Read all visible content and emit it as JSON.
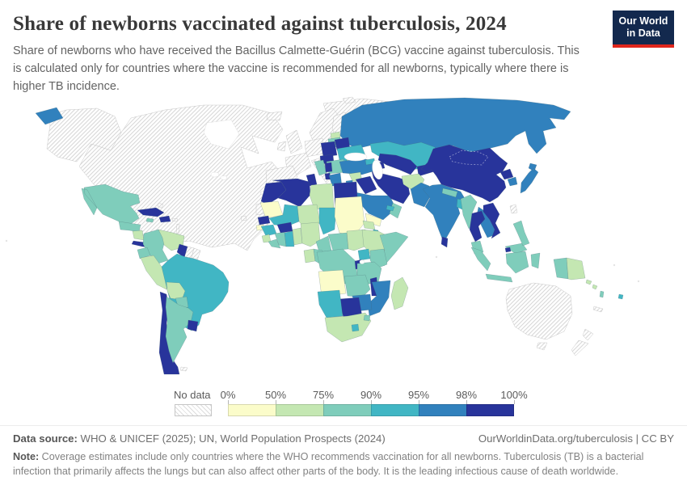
{
  "header": {
    "title": "Share of newborns vaccinated against tuberculosis, 2024",
    "subtitle": "Share of newborns who have received the Bacillus Calmette-Guérin (BCG) vaccine against tuberculosis. This is calculated only for countries where the vaccine is recommended for all newborns, typically where there is higher TB incidence.",
    "logo_line1": "Our World",
    "logo_line2": "in Data",
    "logo_colors": {
      "background": "#13294e",
      "stripe": "#e0261c"
    }
  },
  "chart_data": {
    "type": "heatmap",
    "title": "Share of newborns vaccinated against tuberculosis, 2024",
    "legend_position": "bottom",
    "no_data_label": "No data",
    "tick_labels": [
      "0%",
      "50%",
      "75%",
      "90%",
      "95%",
      "98%",
      "100%"
    ],
    "bucket_ranges": [
      "0-50%",
      "50-75%",
      "75-90%",
      "90-95%",
      "95-98%",
      "98-100%"
    ],
    "bucket_colors": [
      "#fbfcca",
      "#c4e7b2",
      "#7fcdbb",
      "#41b6c4",
      "#3181bd",
      "#28349b"
    ]
  },
  "map": {
    "regions": [
      {
        "id": "canada-usa",
        "name": "Canada & United States",
        "bucket": "no-data"
      },
      {
        "id": "alaska",
        "name": "United States (Alaska)",
        "bucket": "no-data"
      },
      {
        "id": "greenland",
        "name": "Greenland",
        "bucket": "no-data"
      },
      {
        "id": "svalbard",
        "name": "Svalbard",
        "bucket": "no-data"
      },
      {
        "id": "iceland",
        "name": "Iceland",
        "bucket": "no-data"
      },
      {
        "id": "hawaii",
        "name": "Hawaii",
        "bucket": "no-data"
      },
      {
        "id": "uk",
        "name": "United Kingdom",
        "bucket": "no-data"
      },
      {
        "id": "ireland",
        "name": "Ireland",
        "bucket": "no-data"
      },
      {
        "id": "scandinavia",
        "name": "Norway & Sweden",
        "bucket": "no-data"
      },
      {
        "id": "finland",
        "name": "Finland",
        "bucket": "no-data"
      },
      {
        "id": "germany-central",
        "name": "Central Europe",
        "bucket": "no-data"
      },
      {
        "id": "france",
        "name": "France",
        "bucket": "no-data"
      },
      {
        "id": "iberia",
        "name": "Spain & Portugal",
        "bucket": "no-data"
      },
      {
        "id": "italy",
        "name": "Italy",
        "bucket": "no-data"
      },
      {
        "id": "western-sahara",
        "name": "Western Sahara",
        "bucket": "no-data"
      },
      {
        "id": "suriname",
        "name": "Suriname",
        "bucket": "no-data"
      },
      {
        "id": "french-guiana",
        "name": "French Guiana",
        "bucket": "no-data"
      },
      {
        "id": "bahamas",
        "name": "Bahamas",
        "bucket": "no-data"
      },
      {
        "id": "puerto-rico",
        "name": "Puerto Rico",
        "bucket": "no-data"
      },
      {
        "id": "lesser-antilles",
        "name": "Lesser Antilles",
        "bucket": "no-data"
      },
      {
        "id": "falkland-islands",
        "name": "Falkland Islands",
        "bucket": "no-data"
      },
      {
        "id": "taiwan",
        "name": "Taiwan",
        "bucket": "no-data"
      },
      {
        "id": "australia",
        "name": "Australia",
        "bucket": "no-data"
      },
      {
        "id": "tasmania",
        "name": "Tasmania",
        "bucket": "no-data"
      },
      {
        "id": "new-zealand",
        "name": "New Zealand",
        "bucket": "no-data"
      },
      {
        "id": "new-caledonia",
        "name": "New Caledonia",
        "bucket": "no-data"
      },
      {
        "id": "russia",
        "name": "Russia",
        "bucket": "b95"
      },
      {
        "id": "chukotka",
        "name": "Russia (Chukotka)",
        "bucket": "b95"
      },
      {
        "id": "kazakhstan",
        "name": "Kazakhstan",
        "bucket": "b90"
      },
      {
        "id": "estonia",
        "name": "Estonia",
        "bucket": "b50"
      },
      {
        "id": "latvia-lithuania",
        "name": "Latvia & Lithuania",
        "bucket": "b75"
      },
      {
        "id": "poland",
        "name": "Poland",
        "bucket": "b98"
      },
      {
        "id": "belarus",
        "name": "Belarus",
        "bucket": "b98"
      },
      {
        "id": "ukraine",
        "name": "Ukraine",
        "bucket": "b90"
      },
      {
        "id": "moldova",
        "name": "Moldova",
        "bucket": "b50"
      },
      {
        "id": "hungary-slovakia",
        "name": "Hungary & Slovakia",
        "bucket": "b98"
      },
      {
        "id": "romania-bulgaria",
        "name": "Romania & Bulgaria",
        "bucket": "b75"
      },
      {
        "id": "croatia-bosnia",
        "name": "Croatia & Bosnia",
        "bucket": "b75"
      },
      {
        "id": "serbia",
        "name": "Serbia",
        "bucket": "b98"
      },
      {
        "id": "albania",
        "name": "Albania",
        "bucket": "b98"
      },
      {
        "id": "greece",
        "name": "Greece",
        "bucket": "b95"
      },
      {
        "id": "turkey",
        "name": "Turkey",
        "bucket": "b95"
      },
      {
        "id": "georgia",
        "name": "Georgia",
        "bucket": "b90"
      },
      {
        "id": "azerbaijan",
        "name": "Azerbaijan",
        "bucket": "b98"
      },
      {
        "id": "syria",
        "name": "Syria",
        "bucket": "b50"
      },
      {
        "id": "jordan-israel",
        "name": "Jordan",
        "bucket": "b95"
      },
      {
        "id": "iraq",
        "name": "Iraq",
        "bucket": "b98"
      },
      {
        "id": "saudi-arabia",
        "name": "Saudi Arabia",
        "bucket": "b95"
      },
      {
        "id": "yemen",
        "name": "Yemen",
        "bucket": "b0"
      },
      {
        "id": "oman",
        "name": "Oman",
        "bucket": "b75"
      },
      {
        "id": "uae",
        "name": "United Arab Emirates",
        "bucket": "b90"
      },
      {
        "id": "iran",
        "name": "Iran",
        "bucket": "b98"
      },
      {
        "id": "turkmenistan-uzbekistan",
        "name": "Turkmenistan & Uzbekistan",
        "bucket": "b98"
      },
      {
        "id": "kyrgyzstan-tajikistan",
        "name": "Kyrgyzstan & Tajikistan",
        "bucket": "b98"
      },
      {
        "id": "afghanistan",
        "name": "Afghanistan",
        "bucket": "b50"
      },
      {
        "id": "pakistan",
        "name": "Pakistan",
        "bucket": "b95"
      },
      {
        "id": "india",
        "name": "India",
        "bucket": "b95"
      },
      {
        "id": "nepal",
        "name": "Nepal",
        "bucket": "b75"
      },
      {
        "id": "bangladesh",
        "name": "Bangladesh",
        "bucket": "b90"
      },
      {
        "id": "sri-lanka",
        "name": "Sri Lanka",
        "bucket": "b98"
      },
      {
        "id": "china",
        "name": "China & Mongolia",
        "bucket": "b98"
      },
      {
        "id": "north-korea",
        "name": "North Korea",
        "bucket": "b98"
      },
      {
        "id": "south-korea",
        "name": "South Korea",
        "bucket": "b95"
      },
      {
        "id": "japan",
        "name": "Japan",
        "bucket": "b95"
      },
      {
        "id": "myanmar",
        "name": "Myanmar",
        "bucket": "b75"
      },
      {
        "id": "laos-cambodia",
        "name": "Laos & Cambodia",
        "bucket": "b95"
      },
      {
        "id": "thailand",
        "name": "Thailand",
        "bucket": "b98"
      },
      {
        "id": "vietnam",
        "name": "Vietnam",
        "bucket": "b98"
      },
      {
        "id": "malaysia",
        "name": "Malaysia (Peninsular)",
        "bucket": "b75"
      },
      {
        "id": "malaysia-borneo",
        "name": "Malaysia (Borneo)",
        "bucket": "b75"
      },
      {
        "id": "brunei",
        "name": "Brunei",
        "bucket": "b98"
      },
      {
        "id": "indonesia-sumatra",
        "name": "Indonesia (Sumatra)",
        "bucket": "b75"
      },
      {
        "id": "indonesia-java",
        "name": "Indonesia (Java)",
        "bucket": "b75"
      },
      {
        "id": "indonesia-borneo",
        "name": "Indonesia (Kalimantan)",
        "bucket": "b75"
      },
      {
        "id": "indonesia-sulawesi",
        "name": "Indonesia (Sulawesi)",
        "bucket": "b75"
      },
      {
        "id": "indonesia-papua",
        "name": "Indonesia (Papua)",
        "bucket": "b75"
      },
      {
        "id": "philippines",
        "name": "Philippines",
        "bucket": "b75"
      },
      {
        "id": "papua-new-guinea",
        "name": "Papua New Guinea",
        "bucket": "b50"
      },
      {
        "id": "solomon-islands",
        "name": "Solomon Islands",
        "bucket": "b50"
      },
      {
        "id": "vanuatu",
        "name": "Vanuatu",
        "bucket": "b75"
      },
      {
        "id": "fiji",
        "name": "Fiji",
        "bucket": "b90"
      },
      {
        "id": "morocco",
        "name": "Morocco",
        "bucket": "b98"
      },
      {
        "id": "algeria",
        "name": "Algeria",
        "bucket": "b98"
      },
      {
        "id": "tunisia",
        "name": "Tunisia",
        "bucket": "b98"
      },
      {
        "id": "libya",
        "name": "Libya",
        "bucket": "b50"
      },
      {
        "id": "egypt",
        "name": "Egypt",
        "bucket": "b98"
      },
      {
        "id": "mauritania",
        "name": "Mauritania",
        "bucket": "b0"
      },
      {
        "id": "mali",
        "name": "Mali",
        "bucket": "b90"
      },
      {
        "id": "niger",
        "name": "Niger",
        "bucket": "b50"
      },
      {
        "id": "chad",
        "name": "Chad",
        "bucket": "b90"
      },
      {
        "id": "sudan",
        "name": "Sudan",
        "bucket": "b0"
      },
      {
        "id": "senegal",
        "name": "Senegal",
        "bucket": "b98"
      },
      {
        "id": "guinea-bissau",
        "name": "Guinea-Bissau",
        "bucket": "b0"
      },
      {
        "id": "guinea",
        "name": "Guinea",
        "bucket": "b90"
      },
      {
        "id": "sierra-leone",
        "name": "Sierra Leone",
        "bucket": "b50"
      },
      {
        "id": "liberia",
        "name": "Liberia",
        "bucket": "b75"
      },
      {
        "id": "ivory-coast",
        "name": "Côte d'Ivoire",
        "bucket": "b75"
      },
      {
        "id": "burkina-faso",
        "name": "Burkina Faso",
        "bucket": "b98"
      },
      {
        "id": "ghana",
        "name": "Ghana",
        "bucket": "b90"
      },
      {
        "id": "togo-benin",
        "name": "Togo & Benin",
        "bucket": "b50"
      },
      {
        "id": "nigeria",
        "name": "Nigeria",
        "bucket": "b50"
      },
      {
        "id": "cameroon",
        "name": "Cameroon",
        "bucket": "b75"
      },
      {
        "id": "central-african-republic",
        "name": "Central African Republic",
        "bucket": "b75"
      },
      {
        "id": "south-sudan",
        "name": "South Sudan",
        "bucket": "b50"
      },
      {
        "id": "eritrea",
        "name": "Eritrea",
        "bucket": "b50"
      },
      {
        "id": "djibouti",
        "name": "Djibouti",
        "bucket": "b90"
      },
      {
        "id": "ethiopia",
        "name": "Ethiopia",
        "bucket": "b50"
      },
      {
        "id": "somalia",
        "name": "Somalia",
        "bucket": "b75"
      },
      {
        "id": "gabon",
        "name": "Gabon",
        "bucket": "b50"
      },
      {
        "id": "congo",
        "name": "Congo",
        "bucket": "b75"
      },
      {
        "id": "drc",
        "name": "Democratic Republic of Congo",
        "bucket": "b75"
      },
      {
        "id": "uganda",
        "name": "Uganda",
        "bucket": "b90"
      },
      {
        "id": "kenya",
        "name": "Kenya",
        "bucket": "b75"
      },
      {
        "id": "rwanda-burundi",
        "name": "Rwanda & Burundi",
        "bucket": "b98"
      },
      {
        "id": "tanzania",
        "name": "Tanzania",
        "bucket": "b75"
      },
      {
        "id": "angola",
        "name": "Angola",
        "bucket": "b0"
      },
      {
        "id": "zambia",
        "name": "Zambia",
        "bucket": "b75"
      },
      {
        "id": "malawi",
        "name": "Malawi",
        "bucket": "b98"
      },
      {
        "id": "mozambique",
        "name": "Mozambique",
        "bucket": "b95"
      },
      {
        "id": "zimbabwe",
        "name": "Zimbabwe",
        "bucket": "b95"
      },
      {
        "id": "botswana",
        "name": "Botswana",
        "bucket": "b98"
      },
      {
        "id": "namibia",
        "name": "Namibia",
        "bucket": "b90"
      },
      {
        "id": "south-africa",
        "name": "South Africa",
        "bucket": "b50"
      },
      {
        "id": "lesotho",
        "name": "Lesotho",
        "bucket": "b90"
      },
      {
        "id": "eswatini",
        "name": "Eswatini",
        "bucket": "b75"
      },
      {
        "id": "madagascar",
        "name": "Madagascar",
        "bucket": "b50"
      },
      {
        "id": "mexico",
        "name": "Mexico",
        "bucket": "b75"
      },
      {
        "id": "guatemala-honduras",
        "name": "Guatemala & Honduras",
        "bucket": "b75"
      },
      {
        "id": "nicaragua",
        "name": "Nicaragua",
        "bucket": "b50"
      },
      {
        "id": "costa-rica-panama",
        "name": "Costa Rica & Panama",
        "bucket": "b98"
      },
      {
        "id": "cuba",
        "name": "Cuba",
        "bucket": "b98"
      },
      {
        "id": "jamaica",
        "name": "Jamaica",
        "bucket": "b75"
      },
      {
        "id": "hispaniola",
        "name": "Haiti & Dominican Republic",
        "bucket": "b98"
      },
      {
        "id": "colombia",
        "name": "Colombia",
        "bucket": "b75"
      },
      {
        "id": "venezuela",
        "name": "Venezuela",
        "bucket": "b50"
      },
      {
        "id": "guyana",
        "name": "Guyana",
        "bucket": "b98"
      },
      {
        "id": "ecuador",
        "name": "Ecuador",
        "bucket": "b75"
      },
      {
        "id": "peru",
        "name": "Peru",
        "bucket": "b50"
      },
      {
        "id": "brazil",
        "name": "Brazil",
        "bucket": "b90"
      },
      {
        "id": "bolivia",
        "name": "Bolivia",
        "bucket": "b50"
      },
      {
        "id": "paraguay",
        "name": "Paraguay",
        "bucket": "b75"
      },
      {
        "id": "chile",
        "name": "Chile",
        "bucket": "b98"
      },
      {
        "id": "argentina",
        "name": "Argentina",
        "bucket": "b75"
      },
      {
        "id": "uruguay",
        "name": "Uruguay",
        "bucket": "b98"
      }
    ]
  },
  "footer": {
    "datasource_label": "Data source:",
    "datasource_text": " WHO & UNICEF (2025); UN, World Population Prospects (2024)",
    "link_text": "OurWorldinData.org/tuberculosis | CC BY",
    "note_label": "Note:",
    "note_text": " Coverage estimates include only countries where the WHO recommends vaccination for all newborns. Tuberculosis (TB) is a bacterial infection that primarily affects the lungs but can also affect other parts of the body. It is the leading infectious cause of death worldwide."
  }
}
